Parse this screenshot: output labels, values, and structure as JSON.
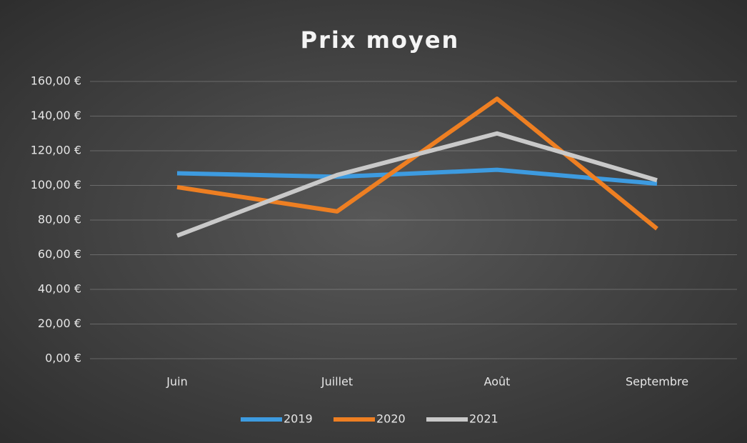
{
  "chart_data": {
    "type": "line",
    "title": "Prix moyen",
    "categories": [
      "Juin",
      "Juillet",
      "Août",
      "Septembre"
    ],
    "series": [
      {
        "name": "2019",
        "color": "#3d9be0",
        "values": [
          107,
          105,
          109,
          101
        ]
      },
      {
        "name": "2020",
        "color": "#ee7f22",
        "values": [
          99,
          85,
          150,
          75
        ]
      },
      {
        "name": "2021",
        "color": "#c9c9c9",
        "values": [
          71,
          106,
          130,
          103
        ]
      }
    ],
    "ylim": [
      0,
      160
    ],
    "yticks": [
      {
        "value": 0,
        "label": "0,00 €"
      },
      {
        "value": 20,
        "label": "20,00 €"
      },
      {
        "value": 40,
        "label": "40,00 €"
      },
      {
        "value": 60,
        "label": "60,00 €"
      },
      {
        "value": 80,
        "label": "80,00 €"
      },
      {
        "value": 100,
        "label": "100,00 €"
      },
      {
        "value": 120,
        "label": "120,00 €"
      },
      {
        "value": 140,
        "label": "140,00 €"
      },
      {
        "value": 160,
        "label": "160,00 €"
      }
    ],
    "grid": true,
    "legend": "bottom"
  }
}
